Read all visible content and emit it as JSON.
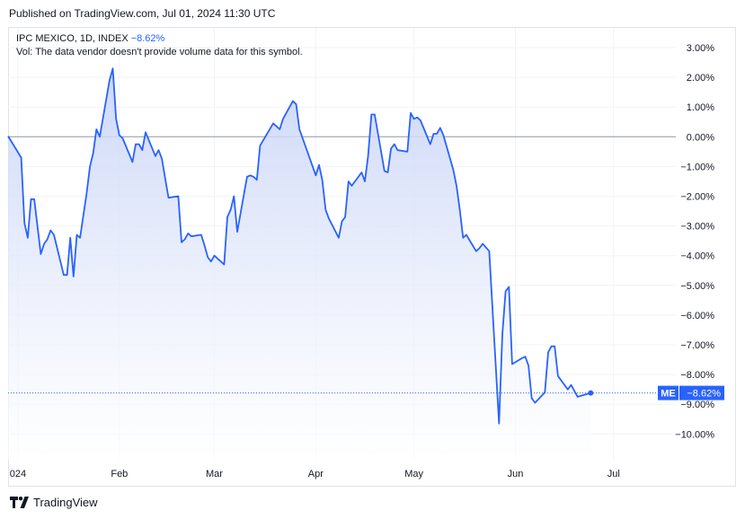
{
  "header": {
    "published": "Published on TradingView.com, Jul 01, 2024 11:30 UTC"
  },
  "legend": {
    "symbol": "IPC MEXICO, 1D, INDEX",
    "change": "−8.62%",
    "volume_note": "Vol: The data vendor doesn't provide volume data for this symbol."
  },
  "footer": {
    "brand": "TradingView"
  },
  "colors": {
    "line": "#2962ff",
    "area_top": "#c7d3f7",
    "area_bottom": "#ffffff",
    "grid": "#f0f3fa",
    "zero_line": "#9598a1",
    "label_bg": "#2962ff"
  },
  "chart_data": {
    "type": "area",
    "title": "IPC MEXICO, 1D, INDEX",
    "y_unit": "%",
    "ylim": [
      -10.85,
      3.35
    ],
    "y_ticks": [
      3,
      2,
      1,
      0,
      -1,
      -2,
      -3,
      -4,
      -5,
      -6,
      -7,
      -8,
      -9,
      -10
    ],
    "y_tick_labels": [
      "3.00%",
      "2.00%",
      "1.00%",
      "0.00%",
      "−1.00%",
      "−2.00%",
      "−3.00%",
      "−4.00%",
      "−5.00%",
      "−6.00%",
      "−7.00%",
      "−8.00%",
      "−9.00%",
      "−10.00%"
    ],
    "x_range": [
      "2023-12-29",
      "2024-07-20"
    ],
    "x_tick_labels": [
      {
        "date": "2024-01-01",
        "label": "024"
      },
      {
        "date": "2024-02-01",
        "label": "Feb"
      },
      {
        "date": "2024-03-01",
        "label": "Mar"
      },
      {
        "date": "2024-04-01",
        "label": "Apr"
      },
      {
        "date": "2024-05-01",
        "label": "May"
      },
      {
        "date": "2024-06-01",
        "label": "Jun"
      },
      {
        "date": "2024-07-01",
        "label": "Jul"
      }
    ],
    "last_value": {
      "value": -8.62,
      "tag": "ME",
      "label": "−8.62%"
    },
    "grid": true,
    "series": [
      {
        "points": [
          [
            "2023-12-29",
            0.02
          ],
          [
            "2024-01-02",
            -0.7
          ],
          [
            "2024-01-03",
            -2.9
          ],
          [
            "2024-01-04",
            -3.4
          ],
          [
            "2024-01-05",
            -2.1
          ],
          [
            "2024-01-06",
            -2.1
          ],
          [
            "2024-01-08",
            -3.95
          ],
          [
            "2024-01-09",
            -3.6
          ],
          [
            "2024-01-10",
            -3.45
          ],
          [
            "2024-01-11",
            -3.15
          ],
          [
            "2024-01-12",
            -3.3
          ],
          [
            "2024-01-15",
            -4.65
          ],
          [
            "2024-01-16",
            -4.65
          ],
          [
            "2024-01-17",
            -3.4
          ],
          [
            "2024-01-18",
            -4.7
          ],
          [
            "2024-01-19",
            -3.3
          ],
          [
            "2024-01-20",
            -3.4
          ],
          [
            "2024-01-22",
            -1.9
          ],
          [
            "2024-01-23",
            -1.0
          ],
          [
            "2024-01-24",
            -0.55
          ],
          [
            "2024-01-25",
            0.25
          ],
          [
            "2024-01-26",
            0.0
          ],
          [
            "2024-01-29",
            1.9
          ],
          [
            "2024-01-30",
            2.3
          ],
          [
            "2024-01-31",
            0.6
          ],
          [
            "2024-02-01",
            0.05
          ],
          [
            "2024-02-02",
            -0.05
          ],
          [
            "2024-02-05",
            -0.85
          ],
          [
            "2024-02-06",
            -0.25
          ],
          [
            "2024-02-07",
            -0.25
          ],
          [
            "2024-02-08",
            -0.45
          ],
          [
            "2024-02-09",
            0.15
          ],
          [
            "2024-02-12",
            -0.65
          ],
          [
            "2024-02-13",
            -0.45
          ],
          [
            "2024-02-14",
            -0.75
          ],
          [
            "2024-02-15",
            -1.4
          ],
          [
            "2024-02-16",
            -2.05
          ],
          [
            "2024-02-19",
            -2.0
          ],
          [
            "2024-02-20",
            -3.55
          ],
          [
            "2024-02-21",
            -3.45
          ],
          [
            "2024-02-22",
            -3.25
          ],
          [
            "2024-02-23",
            -3.35
          ],
          [
            "2024-02-26",
            -3.3
          ],
          [
            "2024-02-27",
            -3.65
          ],
          [
            "2024-02-28",
            -4.05
          ],
          [
            "2024-02-29",
            -4.2
          ],
          [
            "2024-03-01",
            -4.0
          ],
          [
            "2024-03-04",
            -4.3
          ],
          [
            "2024-03-05",
            -2.7
          ],
          [
            "2024-03-06",
            -2.45
          ],
          [
            "2024-03-07",
            -2.0
          ],
          [
            "2024-03-08",
            -3.2
          ],
          [
            "2024-03-11",
            -1.35
          ],
          [
            "2024-03-12",
            -1.3
          ],
          [
            "2024-03-13",
            -1.35
          ],
          [
            "2024-03-14",
            -1.45
          ],
          [
            "2024-03-15",
            -0.3
          ],
          [
            "2024-03-19",
            0.45
          ],
          [
            "2024-03-20",
            0.35
          ],
          [
            "2024-03-21",
            0.25
          ],
          [
            "2024-03-22",
            0.6
          ],
          [
            "2024-03-25",
            1.2
          ],
          [
            "2024-03-26",
            1.1
          ],
          [
            "2024-03-27",
            0.25
          ],
          [
            "2024-04-01",
            -1.3
          ],
          [
            "2024-04-02",
            -0.95
          ],
          [
            "2024-04-03",
            -1.45
          ],
          [
            "2024-04-04",
            -2.45
          ],
          [
            "2024-04-05",
            -2.75
          ],
          [
            "2024-04-08",
            -3.4
          ],
          [
            "2024-04-09",
            -2.85
          ],
          [
            "2024-04-10",
            -2.7
          ],
          [
            "2024-04-11",
            -1.5
          ],
          [
            "2024-04-12",
            -1.65
          ],
          [
            "2024-04-15",
            -1.2
          ],
          [
            "2024-04-16",
            -1.5
          ],
          [
            "2024-04-17",
            -0.65
          ],
          [
            "2024-04-18",
            0.75
          ],
          [
            "2024-04-19",
            0.75
          ],
          [
            "2024-04-22",
            -1.15
          ],
          [
            "2024-04-23",
            -1.2
          ],
          [
            "2024-04-24",
            -0.4
          ],
          [
            "2024-04-25",
            -0.25
          ],
          [
            "2024-04-26",
            -0.45
          ],
          [
            "2024-04-29",
            -0.5
          ],
          [
            "2024-04-30",
            0.8
          ],
          [
            "2024-05-01",
            0.6
          ],
          [
            "2024-05-02",
            0.65
          ],
          [
            "2024-05-03",
            0.55
          ],
          [
            "2024-05-06",
            -0.25
          ],
          [
            "2024-05-07",
            0.1
          ],
          [
            "2024-05-08",
            0.1
          ],
          [
            "2024-05-09",
            0.3
          ],
          [
            "2024-05-10",
            0.05
          ],
          [
            "2024-05-13",
            -1.1
          ],
          [
            "2024-05-14",
            -1.65
          ],
          [
            "2024-05-15",
            -2.45
          ],
          [
            "2024-05-16",
            -3.4
          ],
          [
            "2024-05-17",
            -3.3
          ],
          [
            "2024-05-20",
            -3.85
          ],
          [
            "2024-05-21",
            -3.75
          ],
          [
            "2024-05-22",
            -3.6
          ],
          [
            "2024-05-24",
            -3.85
          ],
          [
            "2024-05-27",
            -9.65
          ],
          [
            "2024-05-28",
            -6.65
          ],
          [
            "2024-05-29",
            -5.2
          ],
          [
            "2024-05-30",
            -5.05
          ],
          [
            "2024-05-31",
            -7.65
          ],
          [
            "2024-06-03",
            -7.45
          ],
          [
            "2024-06-04",
            -7.4
          ],
          [
            "2024-06-05",
            -7.7
          ],
          [
            "2024-06-06",
            -8.8
          ],
          [
            "2024-06-07",
            -8.95
          ],
          [
            "2024-06-10",
            -8.6
          ],
          [
            "2024-06-11",
            -7.25
          ],
          [
            "2024-06-12",
            -7.05
          ],
          [
            "2024-06-13",
            -7.05
          ],
          [
            "2024-06-14",
            -8.05
          ],
          [
            "2024-06-17",
            -8.5
          ],
          [
            "2024-06-18",
            -8.35
          ],
          [
            "2024-06-19",
            -8.55
          ],
          [
            "2024-06-20",
            -8.75
          ],
          [
            "2024-06-24",
            -8.62
          ]
        ]
      }
    ]
  }
}
